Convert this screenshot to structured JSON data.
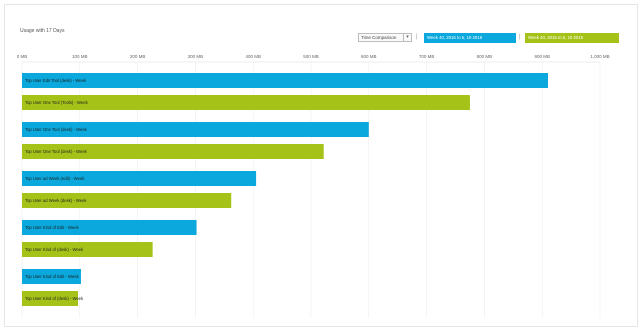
{
  "header": {
    "title": "Usage with 17 Days",
    "compare_select": "Time Comparison",
    "separator_a": "|",
    "separator_b": "|"
  },
  "colors": {
    "series_current": "#0aa8dc",
    "series_previous": "#a5c219",
    "grid": "#eeeeee"
  },
  "chart_data": {
    "type": "bar",
    "orientation": "horizontal",
    "title": "Usage with 17 Days",
    "xlim": [
      0,
      1000
    ],
    "x_ticks": [
      0,
      100,
      200,
      300,
      400,
      500,
      600,
      700,
      800,
      900,
      1000
    ],
    "x_tick_labels": [
      "0 MB",
      "100 MB",
      "200 MB",
      "300 MB",
      "400 MB",
      "500 MB",
      "600 MB",
      "700 MB",
      "800 MB",
      "900 MB",
      "1,000 MB"
    ],
    "grid": true,
    "legend_position": "top-right",
    "series": [
      {
        "name": "Week 40, 2016 to 5, 10 2016",
        "color": "#0aa8dc",
        "labels": [
          "Top User Edit Tool (desk) - Week",
          "Top User One Tool (desk) - Week",
          "Top User ad Week (edit) - Week",
          "Top User Kind of Edit - Week",
          "Top User Kind of Edit - Week"
        ],
        "values": [
          910,
          600,
          405,
          302,
          102
        ]
      },
      {
        "name": "Week 40, 2015 to 5, 10 2015",
        "color": "#a5c219",
        "labels": [
          "Top User One Tool (Tools) - Week",
          "Top User One Tool (desk) - Week",
          "Top User ad Week (desk) - Week",
          "Top User Kind of (desk) - Week",
          "Top User Kind of (desk) - Week"
        ],
        "values": [
          775,
          522,
          362,
          226,
          97
        ]
      }
    ]
  }
}
